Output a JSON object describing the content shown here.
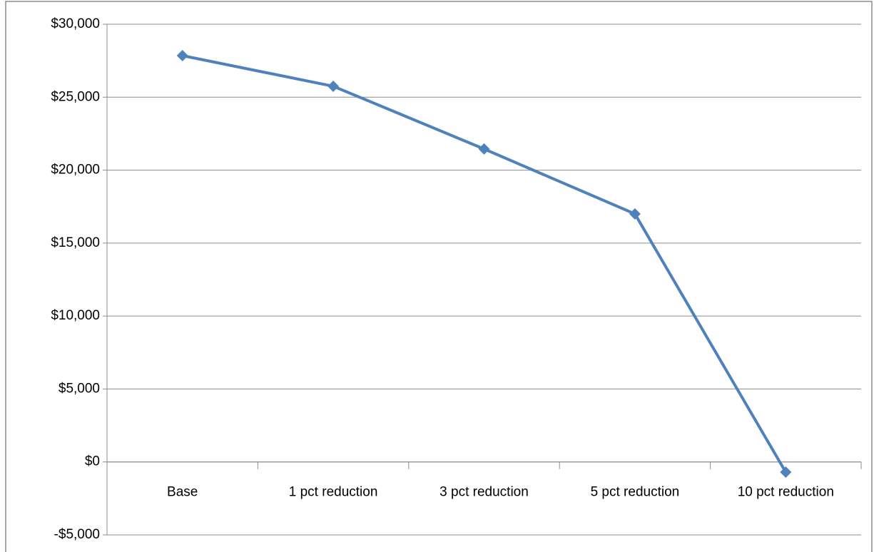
{
  "chart_data": {
    "type": "line",
    "categories": [
      "Base",
      "1 pct reduction",
      "3 pct reduction",
      "5 pct reduction",
      "10 pct reduction"
    ],
    "series": [
      {
        "color": "#4f81bd",
        "values": [
          27850,
          25750,
          21450,
          17000,
          -700
        ]
      }
    ],
    "ylim": [
      -5000,
      30000
    ],
    "yticks": [
      {
        "value": -5000,
        "label": "-$5,000"
      },
      {
        "value": 0,
        "label": "$0"
      },
      {
        "value": 5000,
        "label": "$5,000"
      },
      {
        "value": 10000,
        "label": "$10,000"
      },
      {
        "value": 15000,
        "label": "$15,000"
      },
      {
        "value": 20000,
        "label": "$20,000"
      },
      {
        "value": 25000,
        "label": "$25,000"
      },
      {
        "value": 30000,
        "label": "$30,000"
      }
    ],
    "grid": true
  }
}
